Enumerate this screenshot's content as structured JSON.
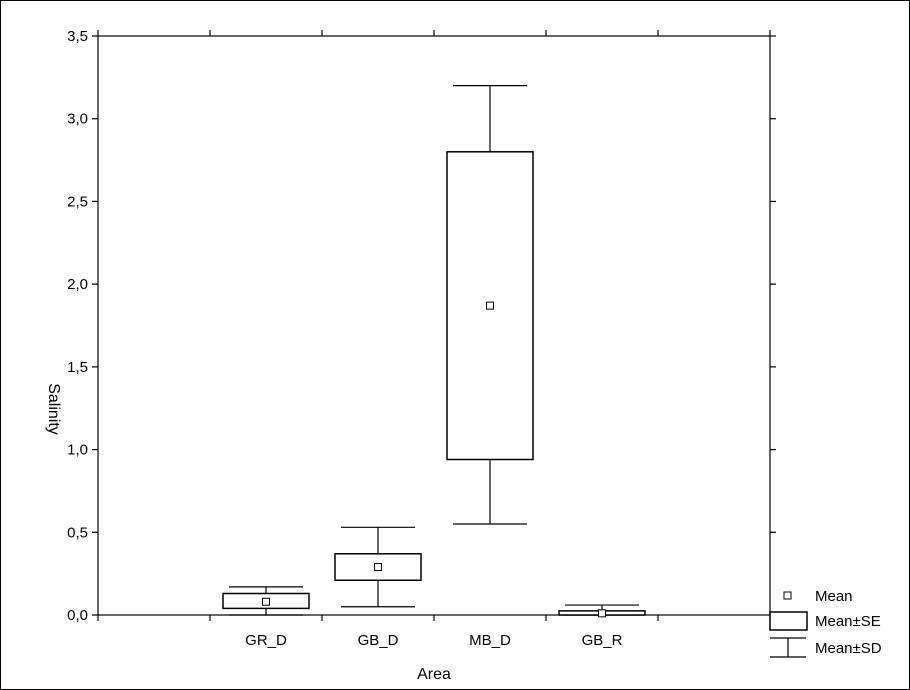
{
  "chart_data": {
    "type": "box",
    "xlabel": "Area",
    "ylabel": "Salinity",
    "ylim": [
      0,
      3.5
    ],
    "yticks": [
      "0,0",
      "0,5",
      "1,0",
      "1,5",
      "2,0",
      "2,5",
      "3,0",
      "3,5"
    ],
    "categories": [
      "GR_D",
      "GB_D",
      "MB_D",
      "GB_R"
    ],
    "series": [
      {
        "category": "GR_D",
        "mean": 0.08,
        "se_low": 0.04,
        "se_high": 0.13,
        "sd_low": 0.0,
        "sd_high": 0.17
      },
      {
        "category": "GB_D",
        "mean": 0.29,
        "se_low": 0.21,
        "se_high": 0.37,
        "sd_low": 0.05,
        "sd_high": 0.53
      },
      {
        "category": "MB_D",
        "mean": 1.87,
        "se_low": 0.94,
        "se_high": 2.8,
        "sd_low": 0.55,
        "sd_high": 3.2
      },
      {
        "category": "GB_R",
        "mean": 0.01,
        "se_low": 0.0,
        "se_high": 0.025,
        "sd_low": 0.0,
        "sd_high": 0.06
      }
    ],
    "legend": {
      "position": "bottom-right",
      "items": [
        "Mean",
        "Mean±SE",
        "Mean±SD"
      ]
    },
    "grid": false
  }
}
